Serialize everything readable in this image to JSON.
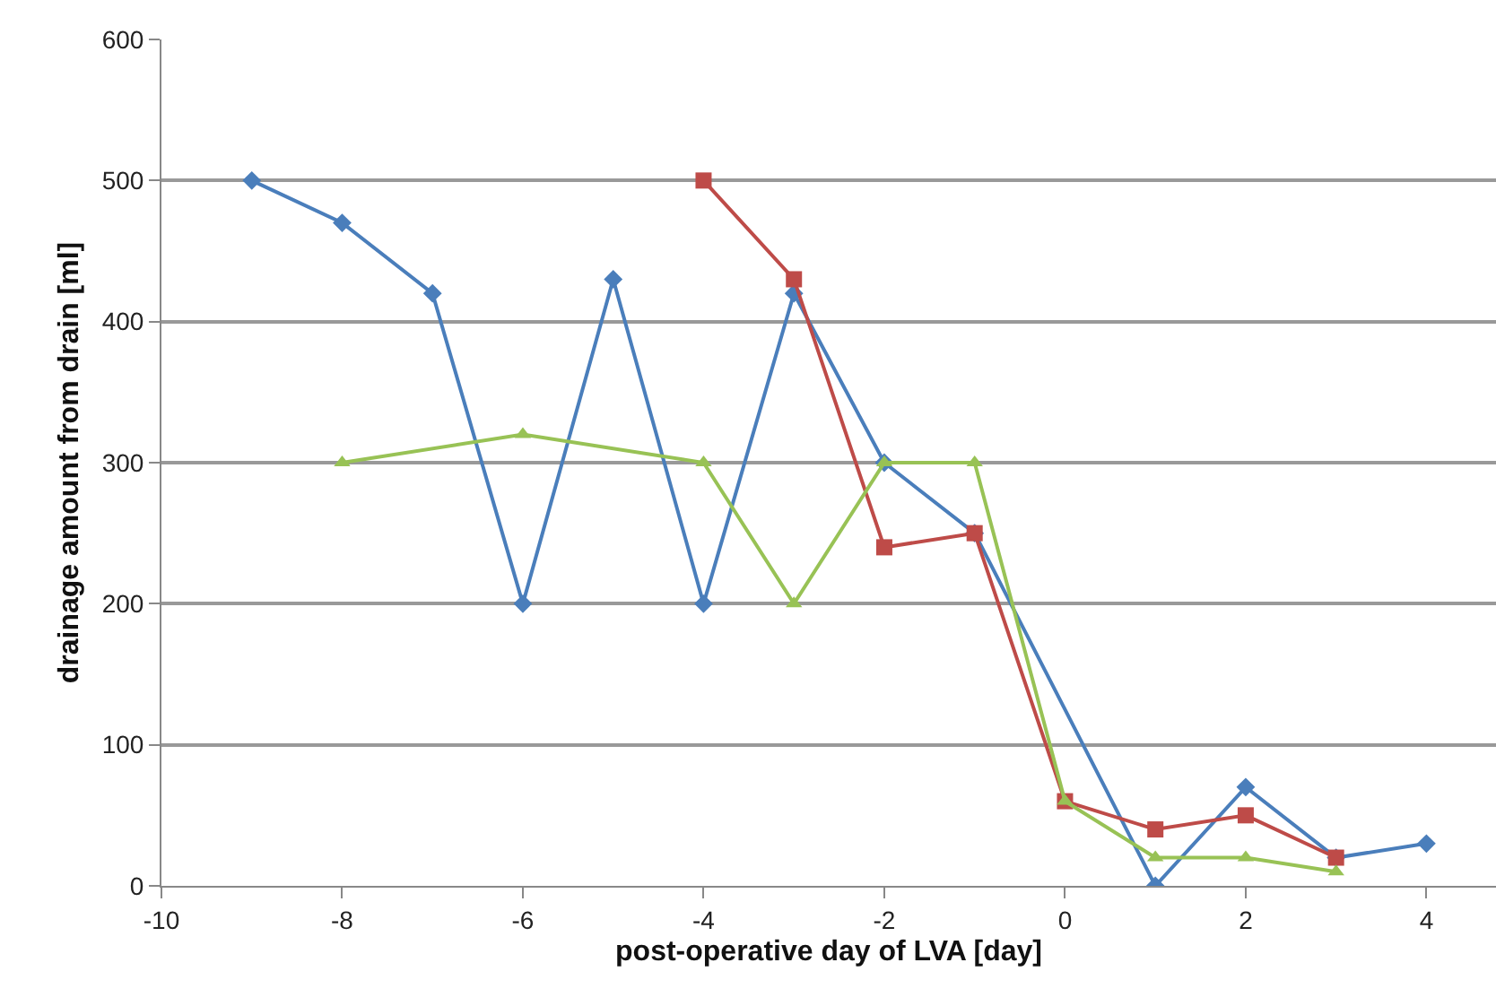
{
  "chart_data": {
    "type": "line",
    "xlabel": "post-operative day of LVA [day]",
    "ylabel": "drainage amount from drain [ml]",
    "xlim": [
      -10,
      4.77
    ],
    "xticks": [
      -10,
      -8,
      -6,
      -4,
      -2,
      0,
      2,
      4
    ],
    "ylim": [
      0,
      600
    ],
    "yticks": [
      0,
      100,
      200,
      300,
      400,
      500,
      600
    ],
    "grid": "y",
    "line_style": "solid",
    "series": [
      {
        "color": "#4a7ebb",
        "marker": "diamond",
        "x": [
          -9,
          -8,
          -7,
          -6,
          -5,
          -4,
          -3,
          -2,
          -1,
          1,
          2,
          3,
          4
        ],
        "values": [
          500,
          470,
          420,
          200,
          430,
          200,
          420,
          300,
          250,
          0,
          70,
          20,
          30
        ]
      },
      {
        "color": "#be4b48",
        "marker": "square",
        "x": [
          -4,
          -3,
          -2,
          -1,
          0,
          1,
          2,
          3
        ],
        "values": [
          500,
          430,
          240,
          250,
          60,
          40,
          50,
          20
        ]
      },
      {
        "color": "#98c255",
        "marker": "triangle",
        "x": [
          -8,
          -6,
          -4,
          -3,
          -2,
          -1,
          0,
          1,
          2,
          3
        ],
        "values": [
          300,
          320,
          300,
          200,
          300,
          300,
          60,
          20,
          20,
          10
        ]
      }
    ]
  }
}
